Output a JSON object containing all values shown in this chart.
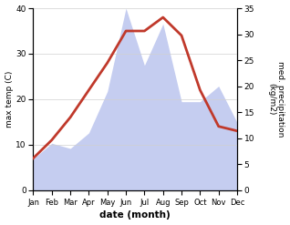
{
  "months": [
    "Jan",
    "Feb",
    "Mar",
    "Apr",
    "May",
    "Jun",
    "Jul",
    "Aug",
    "Sep",
    "Oct",
    "Nov",
    "Dec"
  ],
  "temp": [
    7,
    11,
    16,
    22,
    28,
    35,
    35,
    38,
    34,
    22,
    14,
    13
  ],
  "precip": [
    6,
    9,
    8,
    11,
    19,
    35,
    24,
    32,
    17,
    17,
    20,
    13
  ],
  "temp_color": "#c0392b",
  "precip_fill_color": "#c5cdf0",
  "precip_edge_color": "#b0bce8",
  "bg_color": "#ffffff",
  "xlabel": "date (month)",
  "ylabel_left": "max temp (C)",
  "ylabel_right": "med. precipitation\n(kg/m2)",
  "ylim_left": [
    0,
    40
  ],
  "ylim_right": [
    0,
    35
  ],
  "yticks_left": [
    0,
    10,
    20,
    30,
    40
  ],
  "yticks_right": [
    0,
    5,
    10,
    15,
    20,
    25,
    30,
    35
  ],
  "line_width": 2.0,
  "figsize": [
    3.18,
    2.47
  ],
  "dpi": 100
}
